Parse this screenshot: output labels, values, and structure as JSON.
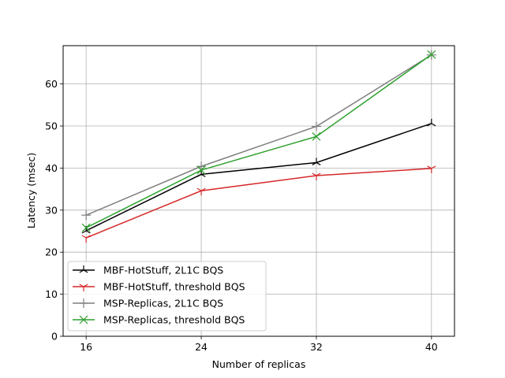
{
  "chart_data": {
    "type": "line",
    "xlabel": "Number of replicas",
    "ylabel": "Latency (msec)",
    "x": [
      16,
      24,
      32,
      40
    ],
    "xticks": [
      16,
      24,
      32,
      40
    ],
    "yticks": [
      0,
      10,
      20,
      30,
      40,
      50,
      60
    ],
    "xlim": [
      14.4,
      41.6
    ],
    "ylim": [
      0,
      69.1
    ],
    "grid": true,
    "legend_position": "lower-left",
    "series": [
      {
        "name": "MBF-HotStuff, 2L1C BQS",
        "values": [
          25.1,
          38.5,
          41.3,
          50.6
        ],
        "color": "#000000",
        "marker": "tri-up"
      },
      {
        "name": "MBF-HotStuff, threshold BQS",
        "values": [
          23.4,
          34.6,
          38.2,
          39.9
        ],
        "color": "#d62728",
        "marker": "tri-down"
      },
      {
        "name": "MSP-Replicas, 2L1C BQS",
        "values": [
          28.8,
          40.4,
          49.9,
          66.9
        ],
        "color": "#7f7f7f",
        "marker": "plus"
      },
      {
        "name": "MSP-Replicas, threshold BQS",
        "values": [
          25.8,
          39.5,
          47.5,
          67.0
        ],
        "color": "#2ca02c",
        "marker": "x"
      }
    ]
  }
}
